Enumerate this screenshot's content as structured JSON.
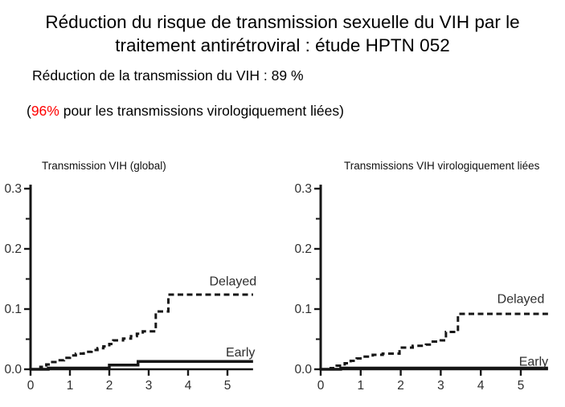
{
  "header": {
    "title_lines": [
      "Réduction du risque de transmission sexuelle du VIH par le",
      "traitement antirétroviral : étude HPTN 052"
    ],
    "subtitle": "Réduction de la transmission du VIH : 89 %",
    "note": {
      "prefix": "(",
      "highlight": "96%",
      "suffix": " pour les transmissions virologiquement liées)",
      "highlight_color": "#ff0000"
    }
  },
  "chart_data": [
    {
      "type": "line",
      "title": "Transmission VIH (global)",
      "xlabel": "",
      "ylabel": "",
      "xlim": [
        0,
        5.65
      ],
      "ylim": [
        0,
        0.3
      ],
      "xticks": [
        0,
        1,
        2,
        3,
        4,
        5
      ],
      "yticks": [
        0.0,
        0.1,
        0.2,
        0.3
      ],
      "yticks_minor": [
        0.05,
        0.15,
        0.25
      ],
      "grid": false,
      "legend_position": "inline-labels",
      "series": [
        {
          "name": "Delayed",
          "line_style": "dashed",
          "step": true,
          "points": [
            [
              0,
              0
            ],
            [
              0.25,
              0.004
            ],
            [
              0.4,
              0.008
            ],
            [
              0.55,
              0.012
            ],
            [
              0.7,
              0.015
            ],
            [
              0.85,
              0.019
            ],
            [
              1.0,
              0.023
            ],
            [
              1.15,
              0.026
            ],
            [
              1.35,
              0.029
            ],
            [
              1.55,
              0.032
            ],
            [
              1.7,
              0.035
            ],
            [
              1.85,
              0.038
            ],
            [
              2.0,
              0.042
            ],
            [
              2.1,
              0.048
            ],
            [
              2.35,
              0.051
            ],
            [
              2.55,
              0.055
            ],
            [
              2.7,
              0.059
            ],
            [
              2.85,
              0.063
            ],
            [
              3.18,
              0.096
            ],
            [
              3.5,
              0.124
            ]
          ],
          "end_x": 5.65,
          "final_value": 0.124,
          "label_pos": [
            5.14,
            0.146
          ]
        },
        {
          "name": "Early",
          "line_style": "solid",
          "step": true,
          "points": [
            [
              0,
              0
            ],
            [
              0.45,
              0.002
            ],
            [
              2.0,
              0.007
            ],
            [
              2.73,
              0.013
            ]
          ],
          "end_x": 5.65,
          "final_value": 0.013,
          "label_pos": [
            5.33,
            0.028
          ]
        }
      ]
    },
    {
      "type": "line",
      "title": "Transmissions VIH virologiquement liées",
      "xlabel": "",
      "ylabel": "",
      "xlim": [
        0,
        5.68
      ],
      "ylim": [
        0,
        0.3
      ],
      "xticks": [
        0,
        1,
        2,
        3,
        4,
        5
      ],
      "yticks": [
        0.0,
        0.1,
        0.2,
        0.3
      ],
      "yticks_minor": [
        0.05,
        0.15,
        0.25
      ],
      "grid": false,
      "legend_position": "inline-labels",
      "series": [
        {
          "name": "Delayed",
          "line_style": "dashed",
          "step": true,
          "points": [
            [
              0,
              0
            ],
            [
              0.25,
              0.002
            ],
            [
              0.4,
              0.006
            ],
            [
              0.6,
              0.01
            ],
            [
              0.75,
              0.014
            ],
            [
              0.9,
              0.018
            ],
            [
              1.05,
              0.021
            ],
            [
              1.3,
              0.024
            ],
            [
              1.55,
              0.026
            ],
            [
              1.97,
              0.036
            ],
            [
              2.3,
              0.039
            ],
            [
              2.63,
              0.041
            ],
            [
              2.8,
              0.046
            ],
            [
              3.0,
              0.048
            ],
            [
              3.13,
              0.062
            ],
            [
              3.43,
              0.092
            ]
          ],
          "end_x": 5.68,
          "final_value": 0.092,
          "label_pos": [
            5.0,
            0.117
          ]
        },
        {
          "name": "Early",
          "line_style": "solid",
          "step": true,
          "points": [
            [
              0,
              0
            ],
            [
              0.5,
              0.002
            ]
          ],
          "end_x": 5.68,
          "final_value": 0.002,
          "label_pos": [
            5.32,
            0.013
          ]
        }
      ]
    }
  ]
}
